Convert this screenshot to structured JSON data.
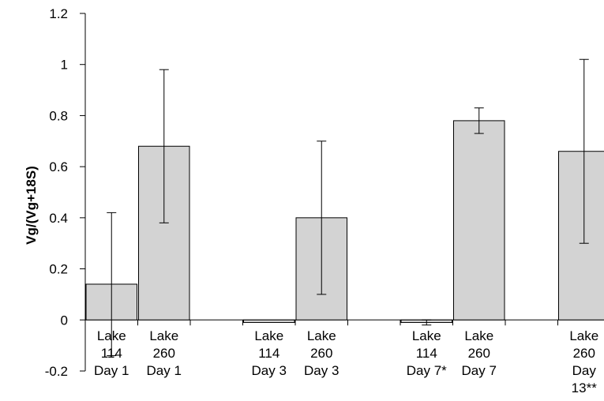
{
  "chart_data": {
    "type": "bar",
    "title": "",
    "xlabel": "",
    "ylabel": "Vg/(Vg+18S)",
    "ylim": [
      -0.2,
      1.2
    ],
    "yticks": [
      "1.2",
      "1",
      "0.8",
      "0.6",
      "0.4",
      "0.2",
      "0",
      "-0.2"
    ],
    "grid": false,
    "bar_color": "#d3d3d3",
    "categories": [
      [
        "Lake",
        "114",
        "Day 1"
      ],
      [
        "Lake",
        "260",
        "Day 1"
      ],
      [
        "Lake",
        "114",
        "Day 3"
      ],
      [
        "Lake",
        "260",
        "Day 3"
      ],
      [
        "Lake",
        "114",
        "Day 7*"
      ],
      [
        "Lake",
        "260",
        "Day 7"
      ],
      [
        "Lake",
        "260",
        "Day",
        "13**"
      ]
    ],
    "slots": [
      0,
      1,
      3,
      4,
      6,
      7,
      9
    ],
    "values": [
      0.14,
      0.68,
      -0.01,
      0.4,
      -0.01,
      0.78,
      0.66
    ],
    "errors": [
      0.28,
      0.3,
      0.0,
      0.3,
      0.01,
      0.05,
      0.36
    ]
  }
}
